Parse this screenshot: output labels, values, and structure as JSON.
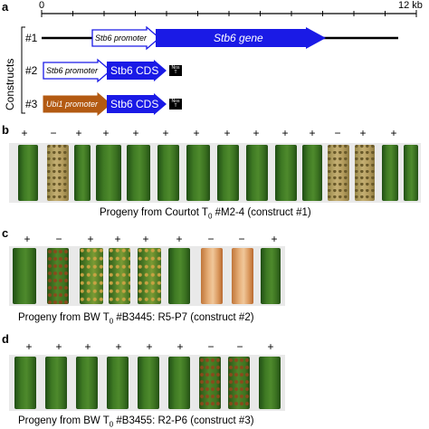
{
  "panel_a": {
    "label": "a",
    "scale_start": "0",
    "scale_end": "12 kb",
    "axis_title": "Constructs",
    "constructs": [
      {
        "num": "#1",
        "promoter": "Stb6 promoter",
        "gene": "Stb6 gene",
        "promoter_color": "#ffffff",
        "gene_color": "#1a1ae6"
      },
      {
        "num": "#2",
        "promoter": "Stb6 promoter",
        "gene": "Stb6 CDS",
        "terminator_top": "Nos",
        "terminator_bottom": "T",
        "promoter_color": "#ffffff",
        "gene_color": "#1a1ae6"
      },
      {
        "num": "#3",
        "promoter": "Ubi1 promoter",
        "gene": "Stb6 CDS",
        "terminator_top": "Nos",
        "terminator_bottom": "T",
        "promoter_color": "#b35a12",
        "gene_color": "#1a1ae6"
      }
    ]
  },
  "panel_b": {
    "label": "b",
    "signs": [
      "+",
      "−",
      "+",
      "+",
      "+",
      "+",
      "+",
      "+",
      "+",
      "+",
      "+",
      "−",
      "+",
      "+"
    ],
    "caption_pre": "Progeny from Courtot T",
    "caption_sub": "0",
    "caption_post": " #M2-4 (construct #1)"
  },
  "panel_c": {
    "label": "c",
    "signs": [
      "+",
      "−",
      "+",
      "+",
      "+",
      "+",
      "−",
      "−",
      "+"
    ],
    "caption_pre": "Progeny from BW T",
    "caption_sub": "0",
    "caption_post": " #B3445: R5-P7 (construct #2)"
  },
  "panel_d": {
    "label": "d",
    "signs": [
      "+",
      "+",
      "+",
      "+",
      "+",
      "+",
      "−",
      "−",
      "+"
    ],
    "caption_pre": "Progeny from BW T",
    "caption_sub": "0",
    "caption_post": " #B3455: R2-P6 (construct #3)"
  }
}
